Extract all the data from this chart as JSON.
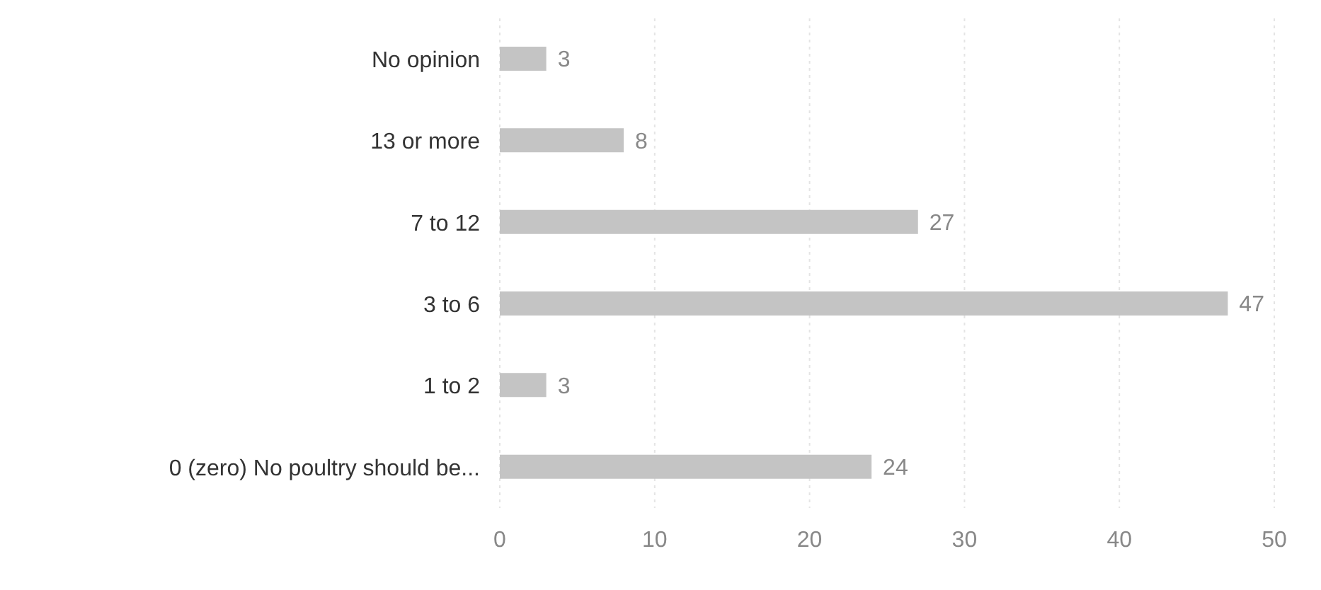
{
  "chart_data": {
    "type": "bar",
    "orientation": "horizontal",
    "categories": [
      "No opinion",
      "13 or more",
      "7 to 12",
      "3 to 6",
      "1 to 2",
      "0 (zero) No poultry should be..."
    ],
    "values": [
      3,
      8,
      27,
      47,
      3,
      24
    ],
    "color": "#c4c4c4",
    "xlim": [
      0,
      50
    ],
    "xticks": [
      0,
      10,
      20,
      30,
      40,
      50
    ],
    "grid": "x",
    "data_labels": true
  }
}
